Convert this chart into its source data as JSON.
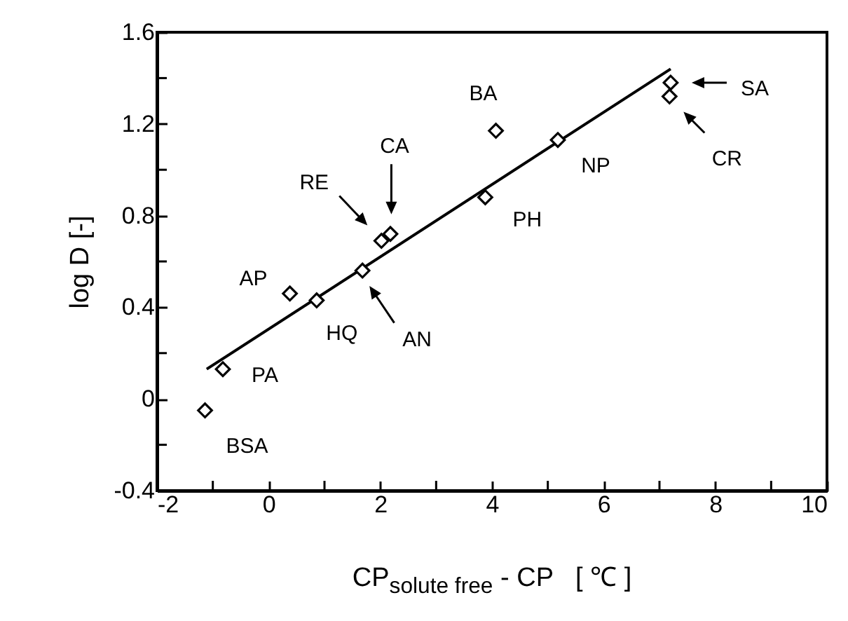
{
  "chart_data": {
    "type": "scatter",
    "xlabel": "CP$_{solute free}$ - CP   [ ℃ ]",
    "ylabel": "log D   [-]",
    "xlim": [
      -2,
      10
    ],
    "ylim": [
      -0.4,
      1.6
    ],
    "xticks": [
      -2,
      {
        "value": -1,
        "label": null
      },
      0,
      {
        "value": 1,
        "label": null
      },
      2,
      {
        "value": 3,
        "label": null
      },
      4,
      {
        "value": 5,
        "label": null
      },
      6,
      {
        "value": 7,
        "label": null
      },
      8,
      {
        "value": 9,
        "label": null
      },
      10
    ],
    "yticks": [
      -0.4,
      {
        "value": -0.2,
        "label": null
      },
      0,
      {
        "value": 0.2,
        "label": null
      },
      0.4,
      {
        "value": 0.6,
        "label": null
      },
      0.8,
      {
        "value": 1.0,
        "label": null
      },
      1.2,
      {
        "value": 1.4,
        "label": null
      },
      1.6
    ],
    "grid": false,
    "series": [
      {
        "type": "scatter",
        "color": "#000000",
        "marker": "diamond",
        "x": [
          -1.14,
          -0.82,
          0.38,
          0.86,
          1.68,
          2.02,
          2.18,
          3.88,
          4.07,
          5.18,
          7.2,
          7.18
        ],
        "values": [
          -0.05,
          0.13,
          0.46,
          0.43,
          0.56,
          0.69,
          0.72,
          0.88,
          1.17,
          1.13,
          1.38,
          1.32
        ]
      },
      {
        "type": "line",
        "color": "#000000",
        "line_style": "solid",
        "x": [
          -1.11,
          7.2
        ],
        "values": [
          0.13,
          1.44
        ]
      }
    ],
    "annotations": [
      {
        "text": "BSA",
        "x": -1.14,
        "y": -0.05
      },
      {
        "text": "PA",
        "x": -0.82,
        "y": 0.13
      },
      {
        "text": "AP",
        "x": 0.38,
        "y": 0.46
      },
      {
        "text": "HQ",
        "x": 0.86,
        "y": 0.43
      },
      "AN",
      "RE",
      "CA",
      {
        "text": "PH",
        "x": 3.88,
        "y": 0.88
      },
      {
        "text": "BA",
        "x": 4.07,
        "y": 1.17
      },
      {
        "text": "NP",
        "x": 5.18,
        "y": 1.13
      },
      "SA",
      "CR"
    ]
  }
}
